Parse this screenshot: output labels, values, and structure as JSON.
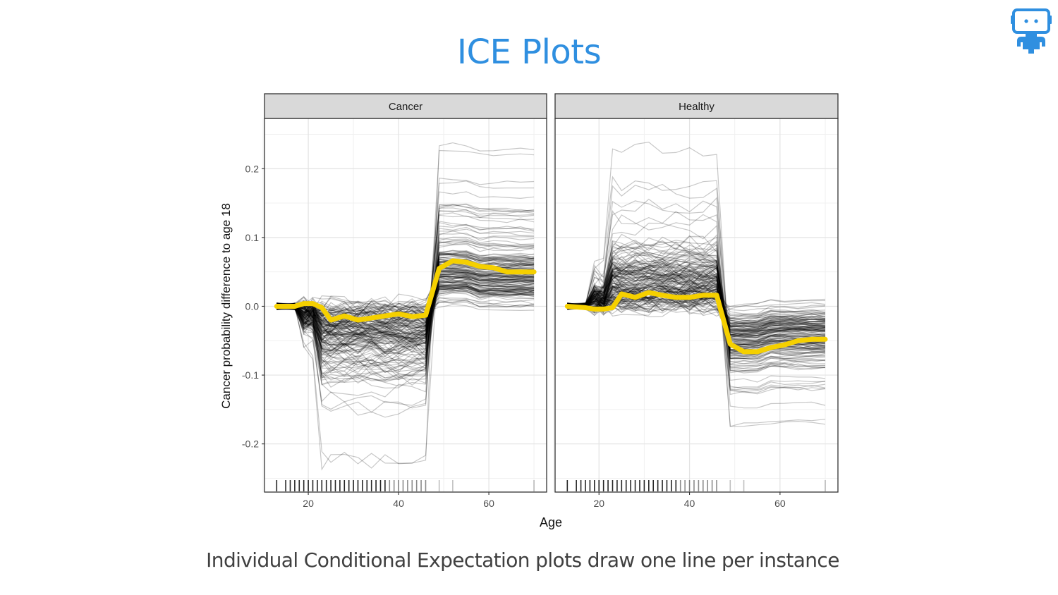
{
  "slide": {
    "title": "ICE Plots",
    "caption": "Individual Conditional Expectation plots draw one line per instance",
    "logo_icon": "robot-logo-icon",
    "accent_color": "#2f8fe0"
  },
  "chart_data": {
    "type": "line",
    "title": "",
    "xlabel": "Age",
    "ylabel": "Cancer probability difference to age 18",
    "xlim": [
      10.3,
      72.8
    ],
    "ylim": [
      -0.27,
      0.273
    ],
    "x_ticks": [
      20,
      40,
      60
    ],
    "x_tick_labels": [
      "20",
      "40",
      "60"
    ],
    "y_ticks": [
      0.2,
      0.1,
      0.0,
      -0.1,
      -0.2
    ],
    "y_tick_labels": [
      "0.2",
      "0.1",
      "0.0",
      "-0.1",
      "-0.2"
    ],
    "grid": true,
    "legend": "none",
    "pdp_color": "#f5d000",
    "ice_color": "#000000",
    "rug_ages": [
      13,
      15,
      16,
      17,
      18,
      19,
      20,
      21,
      22,
      23,
      24,
      25,
      26,
      27,
      28,
      29,
      30,
      31,
      32,
      33,
      34,
      35,
      36,
      37,
      38,
      39,
      40,
      41,
      42,
      43,
      44,
      45,
      46,
      49,
      52,
      70
    ],
    "panels": [
      {
        "facet": "Cancer",
        "pdp": {
          "x": [
            13,
            17,
            19,
            21,
            23,
            25,
            28,
            31,
            34,
            37,
            40,
            43,
            46,
            49,
            52,
            55,
            58,
            61,
            64,
            67,
            70
          ],
          "y": [
            0.0,
            0.0,
            0.004,
            0.004,
            -0.002,
            -0.02,
            -0.014,
            -0.02,
            -0.017,
            -0.014,
            -0.011,
            -0.015,
            -0.013,
            0.055,
            0.066,
            0.064,
            0.058,
            0.056,
            0.05,
            0.05,
            0.05
          ]
        }
      },
      {
        "facet": "Healthy",
        "pdp": {
          "x": [
            13,
            17,
            19,
            21,
            23,
            25,
            28,
            31,
            34,
            37,
            40,
            43,
            46,
            49,
            52,
            55,
            58,
            61,
            64,
            67,
            70
          ],
          "y": [
            0.0,
            -0.002,
            -0.004,
            -0.004,
            -0.002,
            0.018,
            0.013,
            0.02,
            0.016,
            0.013,
            0.013,
            0.016,
            0.016,
            -0.055,
            -0.066,
            -0.066,
            -0.06,
            -0.056,
            -0.05,
            -0.048,
            -0.048
          ]
        }
      }
    ]
  }
}
